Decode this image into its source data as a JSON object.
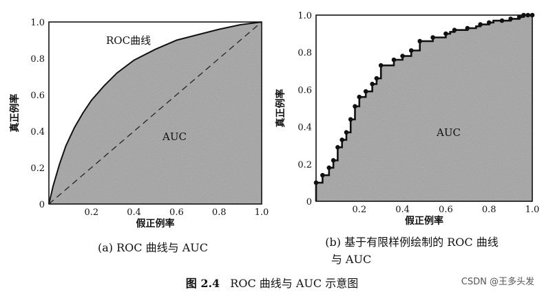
{
  "chart_data": [
    {
      "type": "area",
      "caption": "(a) ROC 曲线与 AUC",
      "xlabel": "假正例率",
      "ylabel": "真正例率",
      "xlim": [
        0,
        1.0
      ],
      "ylim": [
        0,
        1.0
      ],
      "x_ticks": [
        "0.2",
        "0.4",
        "0.6",
        "0.8",
        "1.0"
      ],
      "y_ticks": [
        "0",
        "0.2",
        "0.4",
        "0.6",
        "0.8",
        "1.0"
      ],
      "annotations": {
        "curve": "ROC曲线",
        "area": "AUC"
      },
      "series": [
        {
          "name": "ROC曲线",
          "x": [
            0,
            0.02,
            0.05,
            0.08,
            0.12,
            0.16,
            0.2,
            0.26,
            0.32,
            0.4,
            0.5,
            0.6,
            0.7,
            0.8,
            0.9,
            1.0
          ],
          "y": [
            0,
            0.1,
            0.22,
            0.32,
            0.42,
            0.5,
            0.57,
            0.65,
            0.72,
            0.79,
            0.85,
            0.9,
            0.93,
            0.96,
            0.985,
            1.0
          ]
        },
        {
          "name": "",
          "style": "dashed",
          "x": [
            0,
            1.0
          ],
          "y": [
            0,
            1.0
          ]
        }
      ]
    },
    {
      "type": "line",
      "caption_line1": "(b) 基于有限样例绘制的 ROC 曲线",
      "caption_line2": "与 AUC",
      "xlabel": "假正例率",
      "ylabel": "真正例率",
      "xlim": [
        0,
        1.0
      ],
      "ylim": [
        0,
        1.0
      ],
      "x_ticks": [
        "0.2",
        "0.4",
        "0.6",
        "0.8",
        "1.0"
      ],
      "y_ticks": [
        "0",
        "0.2",
        "0.4",
        "0.6",
        "0.8",
        "1.0"
      ],
      "annotations": {
        "area": "AUC"
      },
      "series": [
        {
          "name": "",
          "x": [
            0,
            0,
            0.03,
            0.03,
            0.06,
            0.06,
            0.08,
            0.08,
            0.1,
            0.1,
            0.12,
            0.12,
            0.14,
            0.14,
            0.16,
            0.16,
            0.18,
            0.18,
            0.2,
            0.2,
            0.23,
            0.23,
            0.26,
            0.26,
            0.28,
            0.28,
            0.3,
            0.3,
            0.36,
            0.36,
            0.4,
            0.4,
            0.44,
            0.44,
            0.48,
            0.48,
            0.54,
            0.54,
            0.6,
            0.6,
            0.62,
            0.62,
            0.64,
            0.64,
            0.7,
            0.7,
            0.74,
            0.74,
            0.76,
            0.76,
            0.8,
            0.8,
            0.82,
            0.82,
            0.86,
            0.86,
            0.9,
            0.9,
            0.92,
            0.92,
            0.94,
            0.94,
            0.96,
            0.96,
            0.98,
            0.98,
            1.0
          ],
          "y": [
            0,
            0.1,
            0.1,
            0.14,
            0.14,
            0.18,
            0.18,
            0.22,
            0.22,
            0.29,
            0.29,
            0.33,
            0.33,
            0.37,
            0.37,
            0.44,
            0.44,
            0.51,
            0.51,
            0.56,
            0.56,
            0.59,
            0.59,
            0.63,
            0.63,
            0.66,
            0.66,
            0.73,
            0.73,
            0.76,
            0.76,
            0.78,
            0.78,
            0.81,
            0.81,
            0.86,
            0.86,
            0.88,
            0.88,
            0.9,
            0.9,
            0.91,
            0.91,
            0.92,
            0.92,
            0.93,
            0.93,
            0.94,
            0.94,
            0.95,
            0.95,
            0.96,
            0.96,
            0.97,
            0.97,
            0.97,
            0.97,
            0.98,
            0.98,
            0.98,
            0.98,
            0.99,
            0.99,
            1.0,
            1.0,
            1.0,
            1.0
          ],
          "points_x": [
            0,
            0.03,
            0.06,
            0.08,
            0.1,
            0.12,
            0.14,
            0.16,
            0.18,
            0.2,
            0.23,
            0.26,
            0.28,
            0.3,
            0.36,
            0.4,
            0.44,
            0.48,
            0.54,
            0.6,
            0.64,
            0.7,
            0.76,
            0.8,
            0.86,
            0.9,
            0.94,
            0.96,
            0.98,
            1.0
          ],
          "points_y": [
            0.1,
            0.14,
            0.18,
            0.22,
            0.29,
            0.33,
            0.37,
            0.44,
            0.51,
            0.56,
            0.59,
            0.63,
            0.66,
            0.73,
            0.76,
            0.78,
            0.81,
            0.86,
            0.88,
            0.9,
            0.92,
            0.93,
            0.95,
            0.96,
            0.97,
            0.98,
            0.99,
            1.0,
            1.0,
            1.0
          ]
        }
      ]
    }
  ],
  "figure_caption": {
    "label": "图 2.4",
    "text": "ROC 曲线与 AUC 示意图"
  },
  "watermark": "CSDN @王多头发",
  "colors": {
    "area_fill": "#a3a3a3",
    "line": "#111111"
  }
}
